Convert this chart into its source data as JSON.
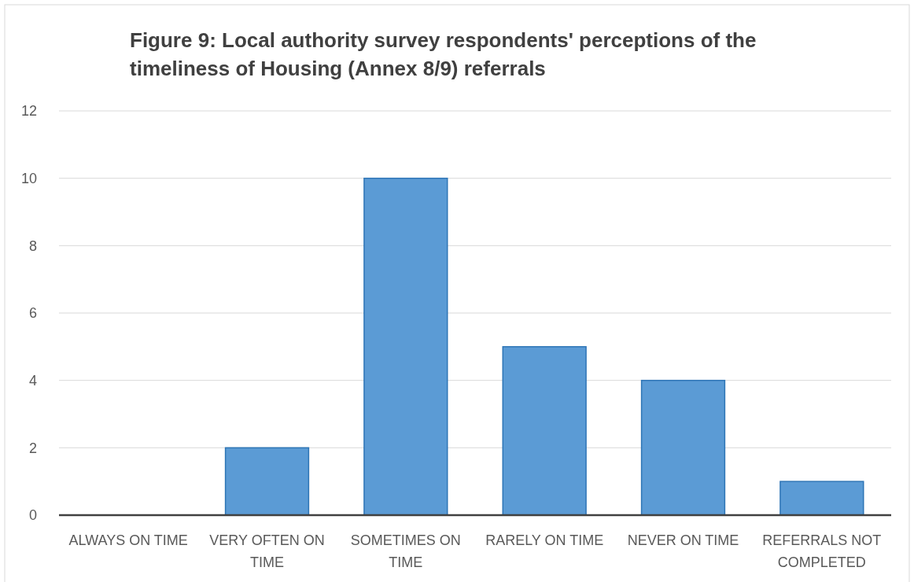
{
  "chart_data": {
    "type": "bar",
    "title": "Figure 9: Local authority survey respondents' perceptions of the timeliness of Housing (Annex 8/9) referrals",
    "categories": [
      "ALWAYS ON TIME",
      "VERY OFTEN ON TIME",
      "SOMETIMES ON TIME",
      "RARELY ON TIME",
      "NEVER ON TIME",
      "REFERRALS NOT COMPLETED"
    ],
    "values": [
      0,
      2,
      10,
      5,
      4,
      1
    ],
    "color": "#5b9bd5",
    "ylim": [
      0,
      12
    ],
    "yticks": [
      0,
      2,
      4,
      6,
      8,
      10,
      12
    ],
    "grid": "y"
  }
}
